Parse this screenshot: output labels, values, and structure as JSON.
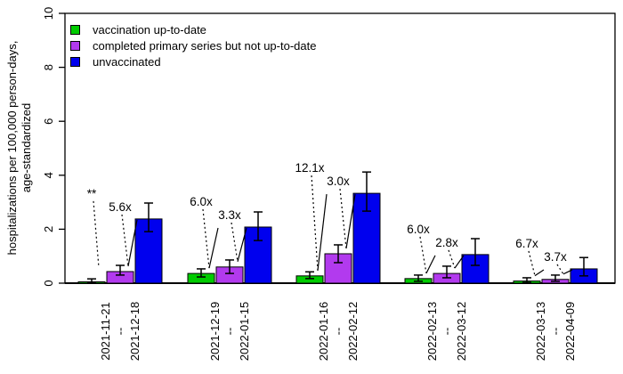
{
  "chart_data": {
    "type": "bar",
    "title": "",
    "ylabel": "hospitalizations per 100,000 person-days, age-standardized",
    "ylabel_line1": "hospitalizations per 100,000 person-days,",
    "ylabel_line2": "age-standardized",
    "xlabel": "",
    "ylim": [
      0,
      10
    ],
    "yticks": [
      0,
      2,
      4,
      6,
      8,
      10
    ],
    "grid": false,
    "legend_position": "top-left",
    "x_label_rotation": -90,
    "categories": [
      {
        "start": "2021-11-21",
        "separator": "--",
        "end": "2021-12-18"
      },
      {
        "start": "2021-12-19",
        "separator": "--",
        "end": "2022-01-15"
      },
      {
        "start": "2022-01-16",
        "separator": "--",
        "end": "2022-02-12"
      },
      {
        "start": "2022-02-13",
        "separator": "--",
        "end": "2022-03-12"
      },
      {
        "start": "2022-03-13",
        "separator": "--",
        "end": "2022-04-09"
      }
    ],
    "series": [
      {
        "name": "vaccination up-to-date",
        "slug": "up-to-date",
        "color": "#00CC00",
        "values": [
          0.05,
          0.36,
          0.27,
          0.17,
          0.08
        ],
        "ci_low": [
          0.02,
          0.23,
          0.17,
          0.07,
          0.03
        ],
        "ci_high": [
          0.16,
          0.53,
          0.42,
          0.3,
          0.2
        ]
      },
      {
        "name": "completed primary series but not up-to-date",
        "slug": "primary-series",
        "color": "#B23AEE",
        "values": [
          0.43,
          0.6,
          1.09,
          0.36,
          0.14
        ],
        "ci_low": [
          0.3,
          0.36,
          0.76,
          0.2,
          0.07
        ],
        "ci_high": [
          0.66,
          0.86,
          1.42,
          0.63,
          0.3
        ]
      },
      {
        "name": "unvaccinated",
        "slug": "unvaccinated",
        "color": "#0000EE",
        "values": [
          2.38,
          2.08,
          3.33,
          1.06,
          0.53
        ],
        "ci_low": [
          1.91,
          1.58,
          2.67,
          0.66,
          0.27
        ],
        "ci_high": [
          2.97,
          2.64,
          4.12,
          1.65,
          0.95
        ]
      }
    ],
    "annotations": [
      {
        "group": 0,
        "target_series": 0,
        "label": "**",
        "show_bracket": false
      },
      {
        "group": 0,
        "target_series": 1,
        "label": "5.6x",
        "show_bracket": true
      },
      {
        "group": 1,
        "target_series": 0,
        "label": "6.0x",
        "show_bracket": true
      },
      {
        "group": 1,
        "target_series": 1,
        "label": "3.3x",
        "show_bracket": true
      },
      {
        "group": 2,
        "target_series": 0,
        "label": "12.1x",
        "show_bracket": true
      },
      {
        "group": 2,
        "target_series": 1,
        "label": "3.0x",
        "show_bracket": true
      },
      {
        "group": 3,
        "target_series": 0,
        "label": "6.0x",
        "show_bracket": true
      },
      {
        "group": 3,
        "target_series": 1,
        "label": "2.8x",
        "show_bracket": true
      },
      {
        "group": 4,
        "target_series": 0,
        "label": "6.7x",
        "show_bracket": true
      },
      {
        "group": 4,
        "target_series": 1,
        "label": "3.7x",
        "show_bracket": true
      }
    ]
  },
  "colors": {
    "axis": "#000000",
    "background": "#ffffff"
  }
}
